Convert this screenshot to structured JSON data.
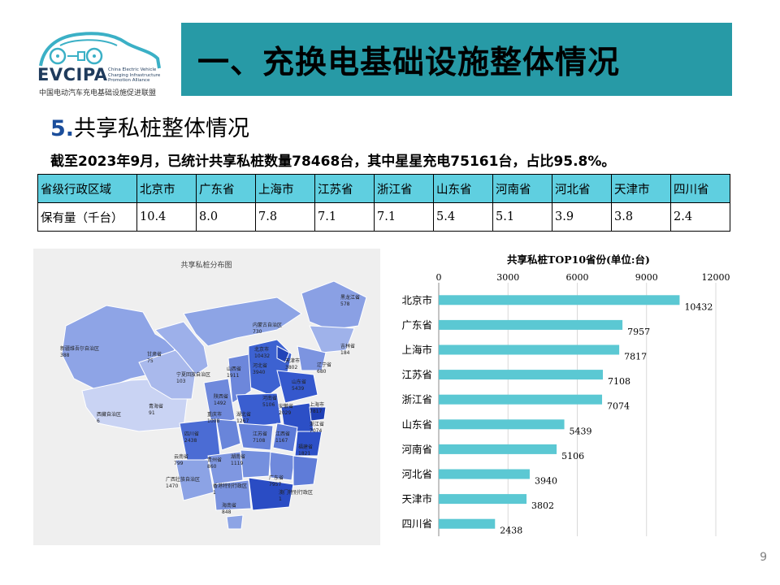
{
  "logo": {
    "text": "EVCIPA",
    "sub": "China Electric Vehicle Charging Infrastructure Promotion Alliance",
    "cn": "中国电动汽车充电基础设施促进联盟"
  },
  "header": {
    "title": "一、充换电基础设施整体情况"
  },
  "section": {
    "number": "5.",
    "title": "共享私桩整体情况"
  },
  "summary": "截至2023年9月，已统计共享私桩数量78468台，其中星星充电75161台，占比95.8%。",
  "table": {
    "header_label": "省级行政区域",
    "row_label": "保有量（千台）",
    "provinces": [
      "北京市",
      "广东省",
      "上海市",
      "江苏省",
      "浙江省",
      "山东省",
      "河南省",
      "河北省",
      "天津市",
      "四川省"
    ],
    "values": [
      "10.4",
      "8.0",
      "7.8",
      "7.1",
      "7.1",
      "5.4",
      "5.1",
      "3.9",
      "3.8",
      "2.4"
    ]
  },
  "map": {
    "title": "共享私桩分布图",
    "labels": [
      {
        "name": "黑龙江省",
        "value": "578"
      },
      {
        "name": "吉林省",
        "value": "184"
      },
      {
        "name": "辽宁省",
        "value": "680"
      },
      {
        "name": "内蒙古自治区",
        "value": "730"
      },
      {
        "name": "新疆维吾尔自治区",
        "value": "388"
      },
      {
        "name": "甘肃省",
        "value": "75"
      },
      {
        "name": "宁夏回族自治区",
        "value": "103"
      },
      {
        "name": "北京市",
        "value": "10432"
      },
      {
        "name": "天津市",
        "value": "3802"
      },
      {
        "name": "河北省",
        "value": "3940"
      },
      {
        "name": "山西省",
        "value": "1911"
      },
      {
        "name": "山东省",
        "value": "5439"
      },
      {
        "name": "陕西省",
        "value": "1492"
      },
      {
        "name": "河南省",
        "value": "5106"
      },
      {
        "name": "青海省",
        "value": "91"
      },
      {
        "name": "西藏自治区",
        "value": "6"
      },
      {
        "name": "重庆市",
        "value": "1008"
      },
      {
        "name": "湖北省",
        "value": "1267"
      },
      {
        "name": "安徽省",
        "value": "2029"
      },
      {
        "name": "上海市",
        "value": "7817"
      },
      {
        "name": "江苏省",
        "value": "7108"
      },
      {
        "name": "浙江省",
        "value": "7074"
      },
      {
        "name": "四川省",
        "value": "2438"
      },
      {
        "name": "江西省",
        "value": "1167"
      },
      {
        "name": "福建省",
        "value": "1821"
      },
      {
        "name": "云南省",
        "value": "799"
      },
      {
        "name": "贵州省",
        "value": "860"
      },
      {
        "name": "湖南省",
        "value": "1119"
      },
      {
        "name": "广东省",
        "value": "7957"
      },
      {
        "name": "广西壮族自治区",
        "value": "1470"
      },
      {
        "name": "香港特别行政区",
        "value": "1"
      },
      {
        "name": "澳门特别行政区",
        "value": "1"
      },
      {
        "name": "海南省",
        "value": "848"
      }
    ]
  },
  "chart_data": {
    "type": "bar",
    "orientation": "horizontal",
    "title": "共享私桩TOP10省份(单位:台)",
    "categories": [
      "北京市",
      "广东省",
      "上海市",
      "江苏省",
      "浙江省",
      "山东省",
      "河南省",
      "河北省",
      "天津市",
      "四川省"
    ],
    "values": [
      10432,
      7957,
      7817,
      7108,
      7074,
      5439,
      5106,
      3940,
      3802,
      2438
    ],
    "xlim": [
      0,
      12000
    ],
    "xticks": [
      0,
      3000,
      6000,
      9000,
      12000
    ],
    "grid": true,
    "bar_color": "#5bc8d3"
  },
  "page_number": "9"
}
